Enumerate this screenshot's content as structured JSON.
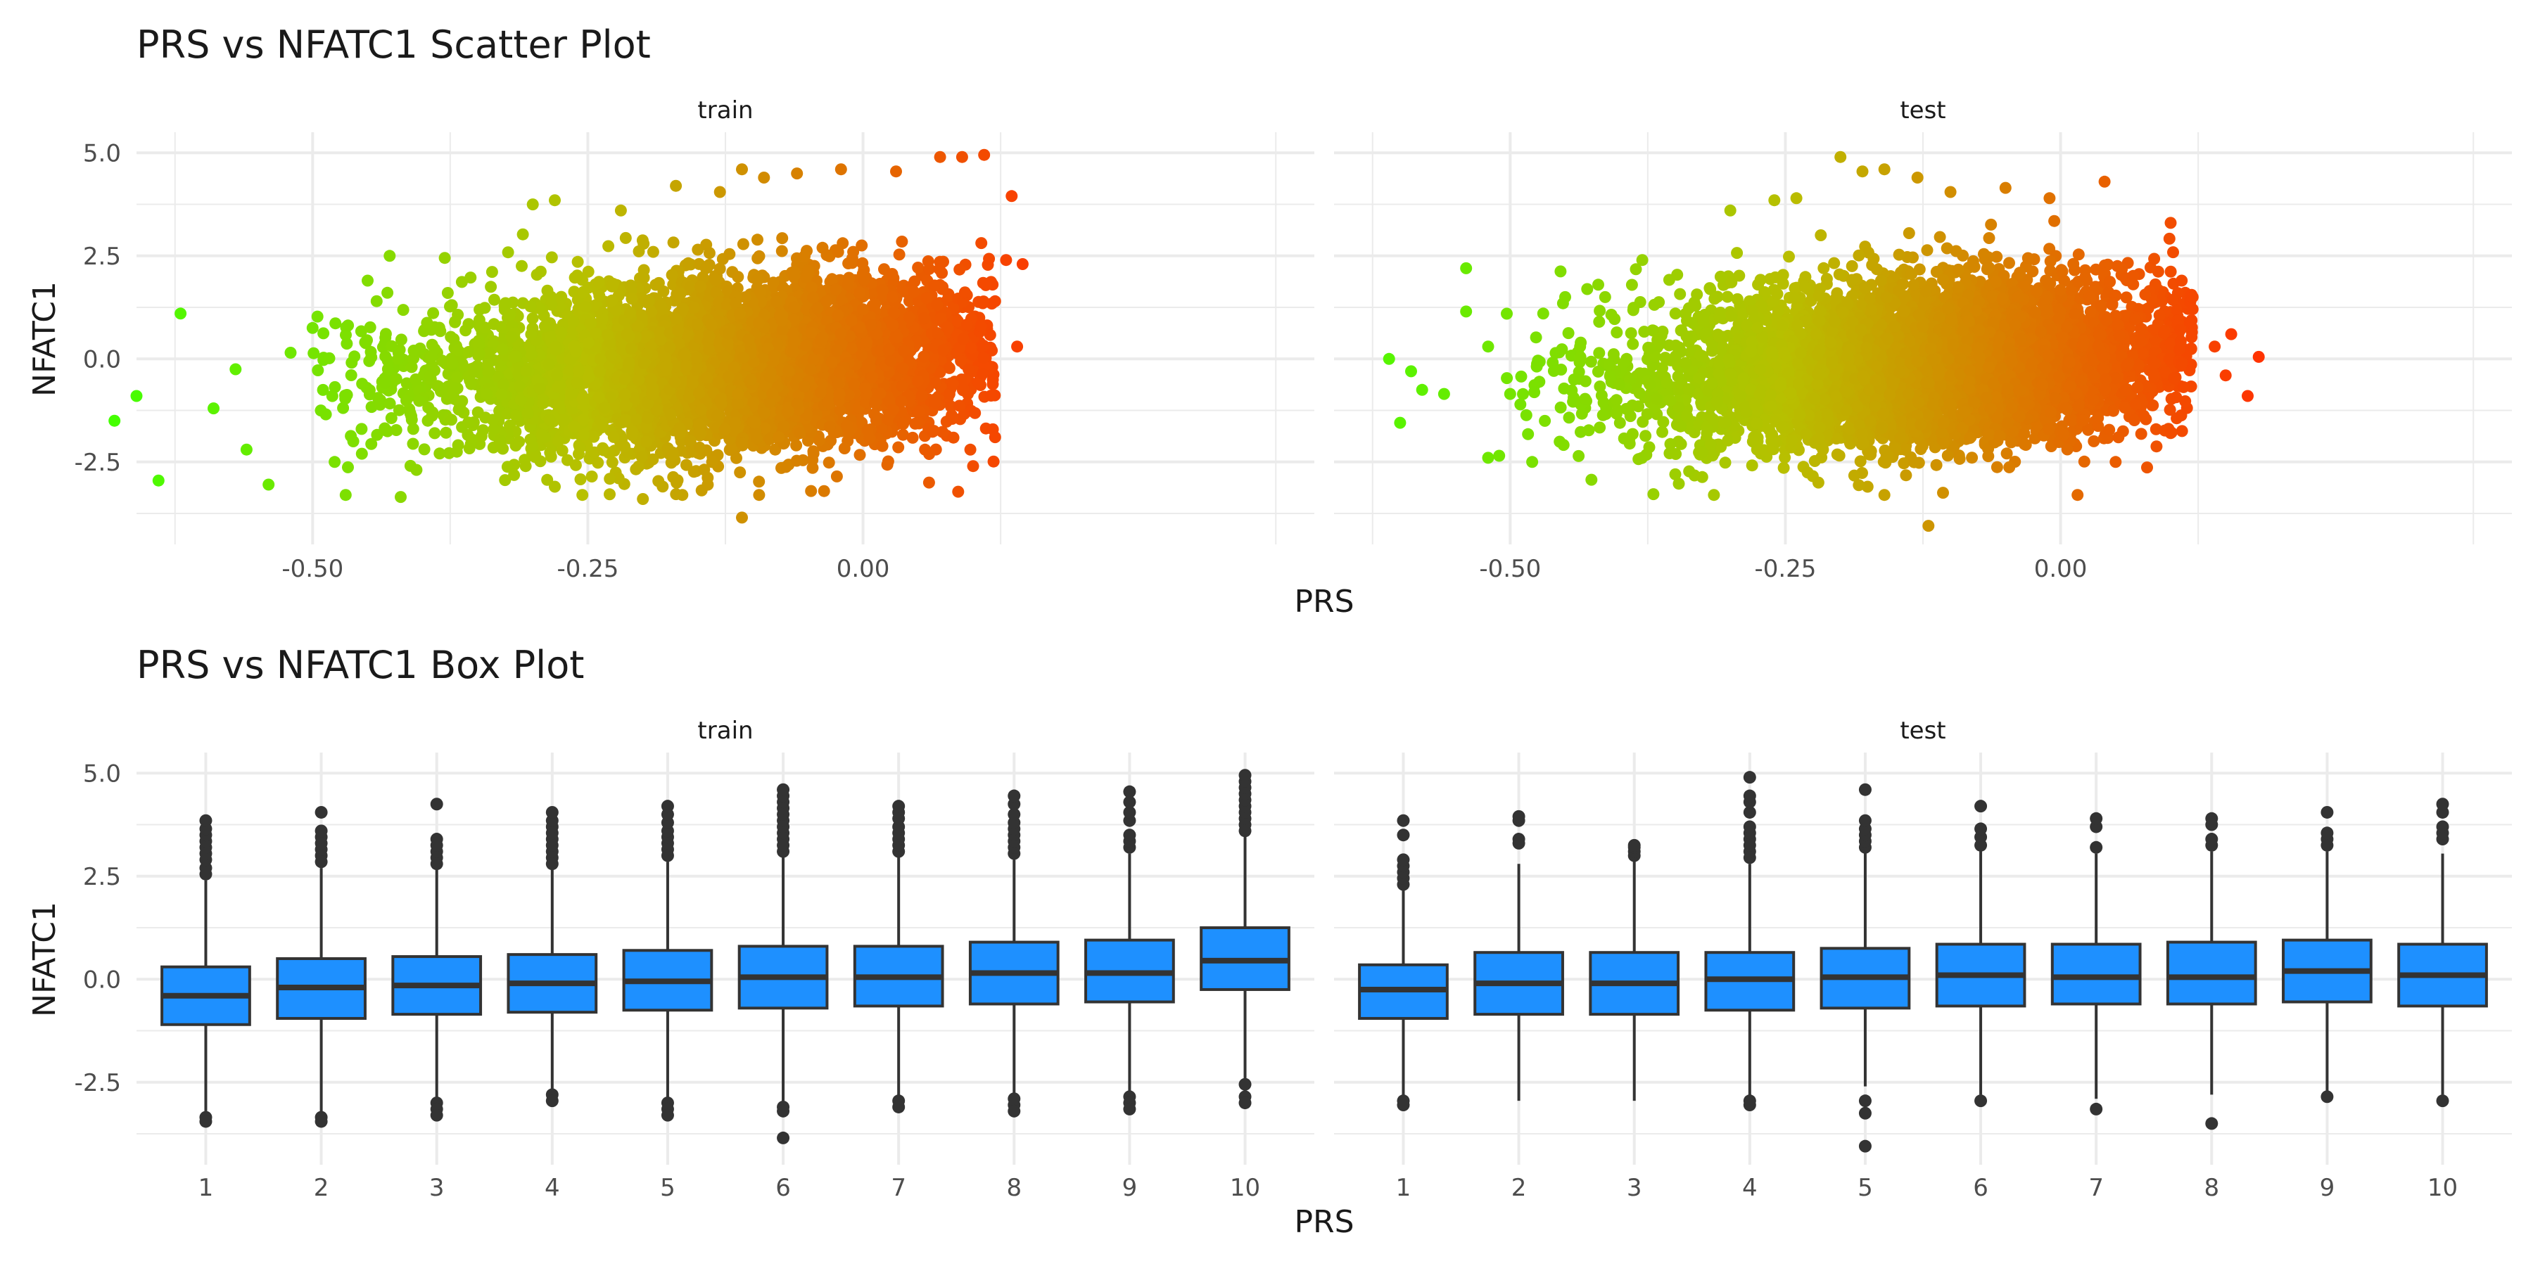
{
  "colors": {
    "grid": "#ebebeb",
    "axis_text": "#4d4d4d",
    "title_text": "#1a1a1a",
    "box_fill": "#1e90ff",
    "box_line": "#333333",
    "gradient_low": "#44ff00",
    "gradient_mid": "#b8bf00",
    "gradient_high": "#ff3300"
  },
  "chart_data": [
    {
      "type": "scatter",
      "title": "PRS vs NFATC1 Scatter Plot",
      "xlabel": "PRS",
      "ylabel": "NFATC1",
      "xlim": [
        -0.66,
        0.41
      ],
      "ylim": [
        -4.5,
        5.5
      ],
      "x_ticks": [
        -0.5,
        -0.25,
        0.0
      ],
      "x_tick_labels": [
        "-0.50",
        "-0.25",
        "0.00"
      ],
      "y_ticks": [
        -2.5,
        0.0,
        2.5,
        5.0
      ],
      "y_tick_labels": [
        "-2.5",
        "0.0",
        "2.5",
        "5.0"
      ],
      "color_by": "PRS",
      "grid": true,
      "legend": "none",
      "panels": [
        {
          "label": "train",
          "cloud": {
            "x_range": [
              -0.5,
              0.1
            ],
            "x_center": -0.12,
            "y_center": -0.1,
            "y_sd": 1.05,
            "trend_slope": 1.4
          },
          "points": [
            [
              -0.68,
              -1.5
            ],
            [
              -0.66,
              -0.9
            ],
            [
              -0.64,
              -2.95
            ],
            [
              -0.62,
              1.1
            ],
            [
              -0.59,
              -1.2
            ],
            [
              -0.57,
              -0.25
            ],
            [
              -0.56,
              -2.2
            ],
            [
              -0.54,
              -3.05
            ],
            [
              -0.52,
              0.15
            ],
            [
              -0.5,
              0.75
            ],
            [
              -0.48,
              -2.5
            ],
            [
              -0.47,
              -3.3
            ],
            [
              -0.45,
              1.9
            ],
            [
              -0.43,
              2.5
            ],
            [
              -0.42,
              -3.35
            ],
            [
              -0.38,
              2.45
            ],
            [
              -0.3,
              3.75
            ],
            [
              -0.28,
              3.85
            ],
            [
              -0.22,
              3.6
            ],
            [
              -0.17,
              4.2
            ],
            [
              -0.13,
              4.05
            ],
            [
              -0.11,
              4.6
            ],
            [
              -0.09,
              4.4
            ],
            [
              -0.06,
              4.5
            ],
            [
              -0.02,
              4.6
            ],
            [
              0.03,
              4.55
            ],
            [
              0.07,
              4.9
            ],
            [
              0.09,
              4.9
            ],
            [
              0.11,
              4.95
            ],
            [
              0.135,
              3.95
            ],
            [
              0.13,
              2.4
            ],
            [
              0.145,
              2.3
            ],
            [
              0.12,
              1.4
            ],
            [
              0.14,
              0.3
            ],
            [
              0.12,
              -1.9
            ],
            [
              0.1,
              -2.6
            ],
            [
              -0.11,
              -3.85
            ],
            [
              -0.2,
              -3.4
            ],
            [
              -0.28,
              -3.1
            ],
            [
              0.06,
              -3.0
            ]
          ]
        },
        {
          "label": "test",
          "cloud": {
            "x_range": [
              -0.5,
              0.1
            ],
            "x_center": -0.12,
            "y_center": -0.1,
            "y_sd": 1.05,
            "trend_slope": 1.4
          },
          "points": [
            [
              -0.61,
              0.0
            ],
            [
              -0.6,
              -1.55
            ],
            [
              -0.59,
              -0.3
            ],
            [
              -0.58,
              -0.75
            ],
            [
              -0.56,
              -0.85
            ],
            [
              -0.54,
              2.2
            ],
            [
              -0.54,
              1.15
            ],
            [
              -0.52,
              0.3
            ],
            [
              -0.52,
              -2.4
            ],
            [
              -0.51,
              -2.35
            ],
            [
              -0.5,
              -0.85
            ],
            [
              -0.48,
              -2.5
            ],
            [
              -0.47,
              1.1
            ],
            [
              -0.45,
              1.5
            ],
            [
              -0.42,
              1.8
            ],
            [
              -0.38,
              2.4
            ],
            [
              -0.35,
              -2.8
            ],
            [
              -0.3,
              3.6
            ],
            [
              -0.26,
              3.85
            ],
            [
              -0.24,
              3.9
            ],
            [
              -0.2,
              4.9
            ],
            [
              -0.18,
              4.55
            ],
            [
              -0.16,
              4.6
            ],
            [
              -0.13,
              4.4
            ],
            [
              -0.1,
              4.05
            ],
            [
              -0.05,
              4.15
            ],
            [
              -0.01,
              3.9
            ],
            [
              0.04,
              4.3
            ],
            [
              0.1,
              3.3
            ],
            [
              0.11,
              1.9
            ],
            [
              0.12,
              1.5
            ],
            [
              0.14,
              0.3
            ],
            [
              0.155,
              0.6
            ],
            [
              0.18,
              0.05
            ],
            [
              0.15,
              -0.4
            ],
            [
              0.17,
              -0.9
            ],
            [
              0.1,
              -1.8
            ],
            [
              0.05,
              -2.5
            ],
            [
              -0.12,
              -4.05
            ],
            [
              -0.22,
              -3.0
            ]
          ]
        }
      ]
    },
    {
      "type": "box",
      "title": "PRS vs NFATC1 Box Plot",
      "xlabel": "PRS",
      "ylabel": "NFATC1",
      "categories": [
        "1",
        "2",
        "3",
        "4",
        "5",
        "6",
        "7",
        "8",
        "9",
        "10"
      ],
      "ylim": [
        -4.5,
        5.5
      ],
      "y_ticks": [
        -2.5,
        0.0,
        2.5,
        5.0
      ],
      "y_tick_labels": [
        "-2.5",
        "0.0",
        "2.5",
        "5.0"
      ],
      "grid": true,
      "legend": "none",
      "panels": [
        {
          "label": "train",
          "boxes": [
            {
              "q1": -1.1,
              "median": -0.4,
              "q3": 0.3,
              "lower": -3.2,
              "upper": 2.4,
              "outliers": [
                2.55,
                2.7,
                2.9,
                3.05,
                3.2,
                3.35,
                3.5,
                3.65,
                3.85,
                -3.35,
                -3.45
              ]
            },
            {
              "q1": -0.95,
              "median": -0.2,
              "q3": 0.5,
              "lower": -3.3,
              "upper": 2.7,
              "outliers": [
                2.85,
                3.0,
                3.15,
                3.3,
                3.45,
                3.6,
                4.05,
                -3.35,
                -3.45
              ]
            },
            {
              "q1": -0.85,
              "median": -0.15,
              "q3": 0.55,
              "lower": -2.9,
              "upper": 2.65,
              "outliers": [
                2.8,
                2.95,
                3.1,
                3.25,
                3.4,
                4.25,
                -3.0,
                -3.15,
                -3.3
              ]
            },
            {
              "q1": -0.8,
              "median": -0.1,
              "q3": 0.6,
              "lower": -2.7,
              "upper": 2.65,
              "outliers": [
                2.8,
                2.95,
                3.1,
                3.25,
                3.4,
                3.55,
                3.7,
                3.85,
                4.05,
                -2.8,
                -2.95
              ]
            },
            {
              "q1": -0.75,
              "median": -0.05,
              "q3": 0.7,
              "lower": -2.9,
              "upper": 2.85,
              "outliers": [
                3.0,
                3.15,
                3.3,
                3.45,
                3.6,
                3.8,
                4.0,
                4.2,
                -3.0,
                -3.15,
                -3.3
              ]
            },
            {
              "q1": -0.7,
              "median": 0.05,
              "q3": 0.8,
              "lower": -3.0,
              "upper": 2.95,
              "outliers": [
                3.1,
                3.25,
                3.4,
                3.55,
                3.7,
                3.85,
                4.0,
                4.15,
                4.3,
                4.45,
                4.6,
                -3.1,
                -3.2,
                -3.85
              ]
            },
            {
              "q1": -0.65,
              "median": 0.05,
              "q3": 0.8,
              "lower": -2.85,
              "upper": 2.95,
              "outliers": [
                3.1,
                3.25,
                3.4,
                3.55,
                3.7,
                3.9,
                4.05,
                4.2,
                -2.95,
                -3.1
              ]
            },
            {
              "q1": -0.6,
              "median": 0.15,
              "q3": 0.9,
              "lower": -2.8,
              "upper": 2.9,
              "outliers": [
                3.05,
                3.2,
                3.35,
                3.5,
                3.65,
                3.8,
                4.0,
                4.25,
                4.45,
                -2.9,
                -3.05,
                -3.2
              ]
            },
            {
              "q1": -0.55,
              "median": 0.15,
              "q3": 0.95,
              "lower": -2.75,
              "upper": 3.05,
              "outliers": [
                3.2,
                3.35,
                3.5,
                3.85,
                4.05,
                4.3,
                4.55,
                -2.85,
                -3.0,
                -3.15
              ]
            },
            {
              "q1": -0.25,
              "median": 0.45,
              "q3": 1.25,
              "lower": -2.45,
              "upper": 3.5,
              "outliers": [
                3.6,
                3.75,
                3.9,
                4.05,
                4.2,
                4.35,
                4.5,
                4.65,
                4.8,
                4.95,
                -2.55,
                -2.85,
                -3.0
              ]
            }
          ]
        },
        {
          "label": "test",
          "boxes": [
            {
              "q1": -0.95,
              "median": -0.25,
              "q3": 0.35,
              "lower": -2.85,
              "upper": 2.2,
              "outliers": [
                2.3,
                2.45,
                2.6,
                2.75,
                2.9,
                3.5,
                3.85,
                -2.95,
                -3.05
              ]
            },
            {
              "q1": -0.85,
              "median": -0.1,
              "q3": 0.65,
              "lower": -2.95,
              "upper": 2.8,
              "outliers": [
                3.3,
                3.4,
                3.85,
                3.95
              ]
            },
            {
              "q1": -0.85,
              "median": -0.1,
              "q3": 0.65,
              "lower": -2.95,
              "upper": 2.9,
              "outliers": [
                3.0,
                3.1,
                3.2,
                3.25
              ]
            },
            {
              "q1": -0.75,
              "median": 0.0,
              "q3": 0.65,
              "lower": -2.85,
              "upper": 2.8,
              "outliers": [
                2.95,
                3.1,
                3.25,
                3.4,
                3.55,
                3.7,
                4.05,
                4.3,
                4.45,
                4.9,
                -2.95,
                -3.05
              ]
            },
            {
              "q1": -0.7,
              "median": 0.05,
              "q3": 0.75,
              "lower": -2.6,
              "upper": 3.1,
              "outliers": [
                3.2,
                3.35,
                3.5,
                3.65,
                3.85,
                4.6,
                -2.95,
                -3.25,
                -4.05
              ]
            },
            {
              "q1": -0.65,
              "median": 0.1,
              "q3": 0.85,
              "lower": -2.8,
              "upper": 3.15,
              "outliers": [
                3.25,
                3.45,
                3.65,
                4.2,
                -2.95
              ]
            },
            {
              "q1": -0.6,
              "median": 0.05,
              "q3": 0.85,
              "lower": -2.9,
              "upper": 3.05,
              "outliers": [
                3.2,
                3.7,
                3.9,
                -3.15
              ]
            },
            {
              "q1": -0.6,
              "median": 0.05,
              "q3": 0.9,
              "lower": -2.8,
              "upper": 3.1,
              "outliers": [
                3.25,
                3.4,
                3.75,
                3.9,
                -3.5
              ]
            },
            {
              "q1": -0.55,
              "median": 0.2,
              "q3": 0.95,
              "lower": -2.75,
              "upper": 3.1,
              "outliers": [
                3.25,
                3.4,
                3.55,
                4.05,
                -2.85
              ]
            },
            {
              "q1": -0.65,
              "median": 0.1,
              "q3": 0.85,
              "lower": -2.8,
              "upper": 3.05,
              "outliers": [
                3.4,
                3.55,
                3.7,
                4.05,
                4.25,
                -2.95
              ]
            }
          ]
        }
      ]
    }
  ]
}
